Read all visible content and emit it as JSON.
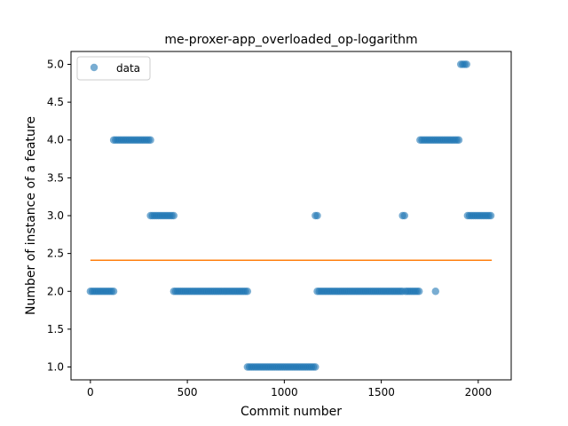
{
  "chart_data": {
    "type": "scatter",
    "title": "me-proxer-app_overloaded_op-logarithm",
    "xlabel": "Commit number",
    "ylabel": "Number of instance of a feature",
    "xlim": [
      -100,
      2170
    ],
    "ylim": [
      0.83,
      5.17
    ],
    "x_ticks": [
      0,
      500,
      1000,
      1500,
      2000
    ],
    "y_ticks": [
      1.0,
      1.5,
      2.0,
      2.5,
      3.0,
      3.5,
      4.0,
      4.5,
      5.0
    ],
    "x_tick_labels": [
      "0",
      "500",
      "1000",
      "1500",
      "2000"
    ],
    "y_tick_labels": [
      "1.0",
      "1.5",
      "2.0",
      "2.5",
      "3.0",
      "3.5",
      "4.0",
      "4.5",
      "5.0"
    ],
    "grid": false,
    "legend": {
      "position": "top-left",
      "entries": [
        "data"
      ]
    },
    "series": [
      {
        "name": "data",
        "kind": "points",
        "color": "#1f77b4",
        "segments": [
          {
            "x_start": 0,
            "x_end": 120,
            "y": 2.0
          },
          {
            "x_start": 120,
            "x_end": 310,
            "y": 4.0
          },
          {
            "x_start": 310,
            "x_end": 430,
            "y": 3.0
          },
          {
            "x_start": 430,
            "x_end": 810,
            "y": 2.0
          },
          {
            "x_start": 810,
            "x_end": 1160,
            "y": 1.0
          },
          {
            "x_start": 1160,
            "x_end": 1170,
            "y": 3.0
          },
          {
            "x_start": 1170,
            "x_end": 1610,
            "y": 2.0
          },
          {
            "x_start": 1610,
            "x_end": 1625,
            "y": 3.0
          },
          {
            "x_start": 1625,
            "x_end": 1700,
            "y": 2.0
          },
          {
            "x_start": 1700,
            "x_end": 1900,
            "y": 4.0
          },
          {
            "x_start": 1910,
            "x_end": 1945,
            "y": 5.0
          },
          {
            "x_start": 1945,
            "x_end": 2070,
            "y": 3.0
          }
        ],
        "points": [
          {
            "x": 1780,
            "y": 2.0
          }
        ]
      },
      {
        "name": "",
        "kind": "line",
        "color": "#ff7f0e",
        "x": [
          0,
          2070
        ],
        "y": [
          2.41,
          2.41
        ]
      }
    ]
  }
}
